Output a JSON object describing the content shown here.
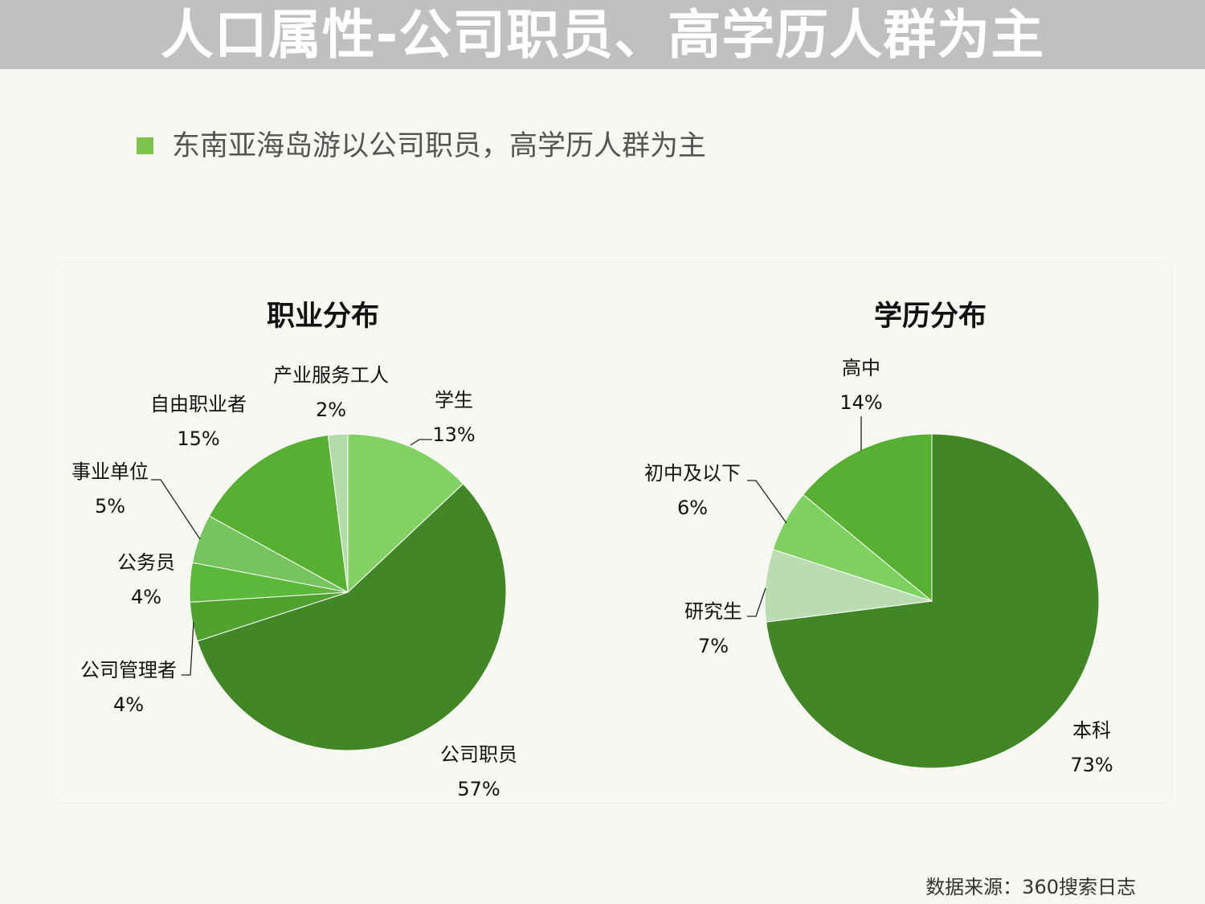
{
  "title": "人口属性-公司职员、高学历人群为主",
  "subtitle": "东南亚海岛游以公司职员，高学历人群为主",
  "source": "数据来源：360搜索日志",
  "colors": {
    "title_bar": "#c0c0c0",
    "bullet": "#7dc44f"
  },
  "chart_data": [
    {
      "type": "pie",
      "title": "职业分布",
      "start_angle_deg": 0,
      "direction": "clockwise",
      "slices": [
        {
          "label": "学生",
          "pct": "13%",
          "value": 13,
          "color": "#82d163"
        },
        {
          "label": "公司职员",
          "pct": "57%",
          "value": 57,
          "color": "#428725"
        },
        {
          "label": "公司管理者",
          "pct": "4%",
          "value": 4,
          "color": "#4ea22d"
        },
        {
          "label": "公务员",
          "pct": "4%",
          "value": 4,
          "color": "#5bb838"
        },
        {
          "label": "事业单位",
          "pct": "5%",
          "value": 5,
          "color": "#76c45e"
        },
        {
          "label": "自由职业者",
          "pct": "15%",
          "value": 15,
          "color": "#57b032"
        },
        {
          "label": "产业服务工人",
          "pct": "2%",
          "value": 2,
          "color": "#b6dbab"
        }
      ]
    },
    {
      "type": "pie",
      "title": "学历分布",
      "start_angle_deg": 0,
      "direction": "clockwise",
      "slices": [
        {
          "label": "本科",
          "pct": "73%",
          "value": 73,
          "color": "#428725"
        },
        {
          "label": "研究生",
          "pct": "7%",
          "value": 7,
          "color": "#b9dcb0"
        },
        {
          "label": "初中及以下",
          "pct": "6%",
          "value": 6,
          "color": "#7fd15f"
        },
        {
          "label": "高中",
          "pct": "14%",
          "value": 14,
          "color": "#57b032"
        }
      ]
    }
  ]
}
